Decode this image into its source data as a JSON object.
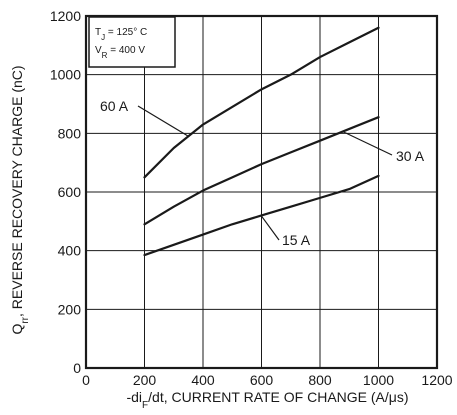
{
  "chart_data": {
    "type": "line",
    "title": "",
    "xlabel": "-di_F/dt, CURRENT RATE OF CHANGE (A/μs)",
    "ylabel": "Q_rr, REVERSE RECOVERY CHARGE (nC)",
    "xlim": [
      0,
      1200
    ],
    "ylim": [
      0,
      1200
    ],
    "xticks": [
      0,
      200,
      400,
      600,
      800,
      1000,
      1200
    ],
    "yticks": [
      0,
      200,
      400,
      600,
      800,
      1000,
      1200
    ],
    "grid": true,
    "conditions": {
      "line1": "T_J = 125° C",
      "line2": "V_R = 400  V"
    },
    "series": [
      {
        "name": "60 A",
        "x": [
          200,
          300,
          400,
          500,
          600,
          700,
          800,
          900,
          1000
        ],
        "y": [
          650,
          750,
          830,
          890,
          950,
          1000,
          1060,
          1110,
          1160
        ]
      },
      {
        "name": "30 A",
        "x": [
          200,
          300,
          400,
          500,
          600,
          700,
          800,
          900,
          1000
        ],
        "y": [
          490,
          550,
          605,
          650,
          695,
          735,
          775,
          815,
          855
        ]
      },
      {
        "name": "15 A",
        "x": [
          200,
          300,
          400,
          500,
          600,
          700,
          800,
          900,
          1000
        ],
        "y": [
          385,
          420,
          455,
          490,
          520,
          550,
          580,
          610,
          655
        ]
      }
    ]
  }
}
